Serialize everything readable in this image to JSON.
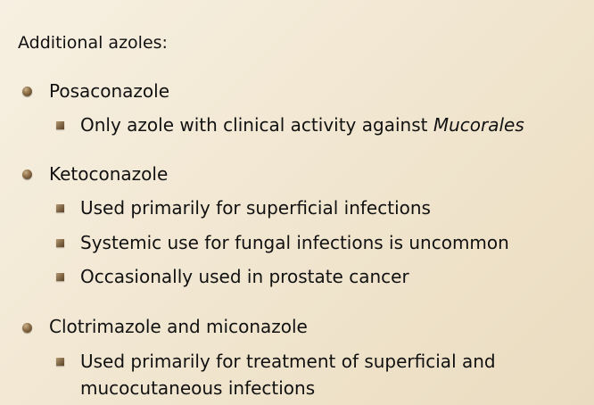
{
  "heading": "Additional azoles:",
  "sections": [
    {
      "title": "Posaconazole",
      "items": [
        {
          "text": "Only azole with clinical activity against ",
          "italic": "Mucorales"
        }
      ]
    },
    {
      "title": "Ketoconazole",
      "items": [
        {
          "text": "Used primarily for superficial infections"
        },
        {
          "text": "Systemic use for fungal infections is uncommon"
        },
        {
          "text": "Occasionally used in prostate cancer"
        }
      ]
    },
    {
      "title": "Clotrimazole and miconazole",
      "items": [
        {
          "line1": "Used primarily for treatment of superficial and",
          "line2": "mucocutaneous infections"
        }
      ]
    }
  ]
}
